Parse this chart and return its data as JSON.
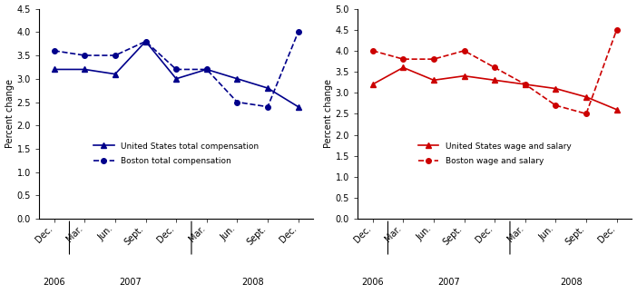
{
  "x_labels": [
    "Dec.",
    "Mar.",
    "Jun.",
    "Sept.",
    "Dec.",
    "Mar.",
    "Jun.",
    "Sept.",
    "Dec."
  ],
  "left_us_total": [
    3.2,
    3.2,
    3.1,
    3.8,
    3.0,
    3.2,
    3.0,
    2.8,
    2.4
  ],
  "left_boston_total": [
    3.6,
    3.5,
    3.5,
    3.8,
    3.2,
    3.2,
    2.5,
    2.4,
    4.0
  ],
  "right_us_wages": [
    3.2,
    3.6,
    3.3,
    3.4,
    3.3,
    3.2,
    3.1,
    2.9,
    2.6
  ],
  "right_boston_wages": [
    4.0,
    3.8,
    3.8,
    4.0,
    3.6,
    3.2,
    2.7,
    2.5,
    4.5
  ],
  "left_color": "#00008B",
  "right_color": "#CC0000",
  "left_ylim": [
    0.0,
    4.5
  ],
  "right_ylim": [
    0.0,
    5.0
  ],
  "left_yticks": [
    0.0,
    0.5,
    1.0,
    1.5,
    2.0,
    2.5,
    3.0,
    3.5,
    4.0,
    4.5
  ],
  "right_yticks": [
    0.0,
    0.5,
    1.0,
    1.5,
    2.0,
    2.5,
    3.0,
    3.5,
    4.0,
    4.5,
    5.0
  ],
  "left_legend1": "United States total compensation",
  "left_legend2": "Boston total compensation",
  "right_legend1": "United States wage and salary",
  "right_legend2": "Boston wage and salary",
  "ylabel": "Percent change"
}
